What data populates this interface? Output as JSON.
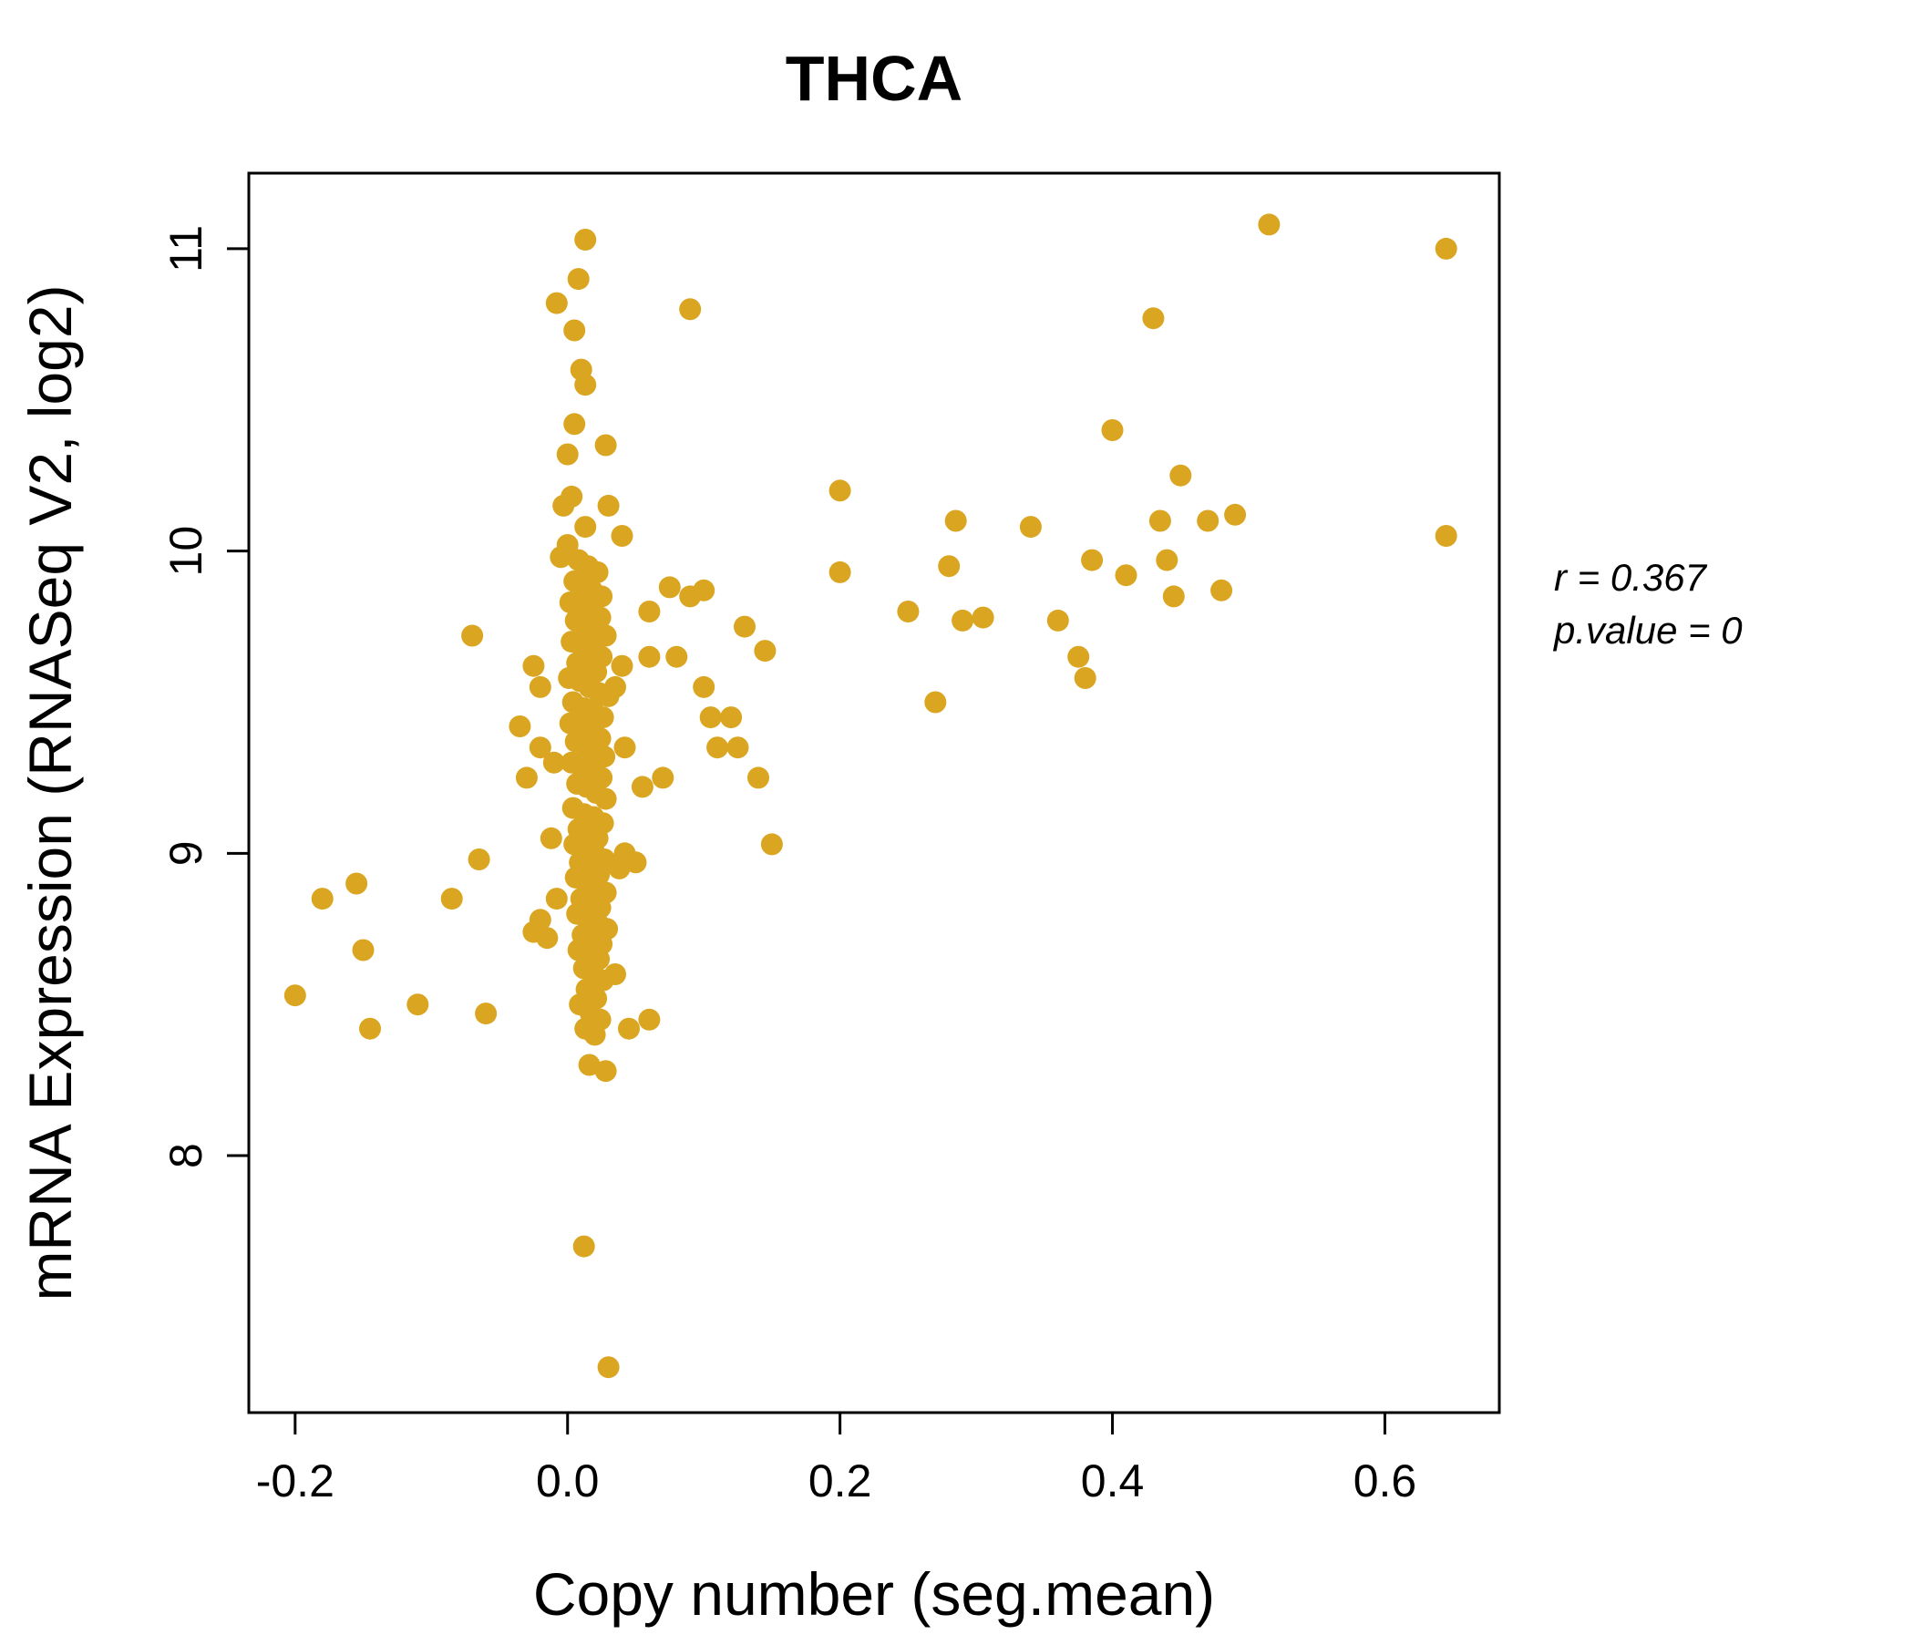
{
  "colors": {
    "accent": "#DAA520",
    "point": "#DAA520",
    "axis": "#000000",
    "background": "#FFFFFF"
  },
  "annotation": {
    "line1": "r = 0.367",
    "line2": "p.value = 0"
  },
  "chart_data": {
    "type": "scatter",
    "title": "THCA",
    "xlabel": "Copy number (seg.mean)",
    "ylabel": "mRNA Expression (RNASeq V2, log2)",
    "xlim": [
      -0.234,
      0.684
    ],
    "ylim": [
      7.15,
      11.25
    ],
    "x_ticks": [
      -0.2,
      0.0,
      0.2,
      0.4,
      0.6
    ],
    "x_tick_labels": [
      "-0.2",
      "0.0",
      "0.2",
      "0.4",
      "0.6"
    ],
    "y_ticks": [
      8,
      9,
      10,
      11
    ],
    "y_tick_labels": [
      "8",
      "9",
      "10",
      "11"
    ],
    "grid": false,
    "legend": "none",
    "annotations": [
      "r = 0.367",
      "p.value = 0"
    ],
    "points": [
      [
        0.013,
        11.03
      ],
      [
        0.008,
        10.9
      ],
      [
        -0.008,
        10.82
      ],
      [
        0.005,
        10.73
      ],
      [
        0.01,
        10.6
      ],
      [
        0.013,
        10.55
      ],
      [
        0.005,
        10.42
      ],
      [
        0.028,
        10.35
      ],
      [
        0.0,
        10.32
      ],
      [
        0.003,
        10.18
      ],
      [
        -0.003,
        10.15
      ],
      [
        0.03,
        10.15
      ],
      [
        0.013,
        10.08
      ],
      [
        0.04,
        10.05
      ],
      [
        0.0,
        10.02
      ],
      [
        -0.005,
        9.98
      ],
      [
        0.008,
        9.97
      ],
      [
        0.015,
        9.95
      ],
      [
        0.022,
        9.93
      ],
      [
        0.005,
        9.9
      ],
      [
        0.012,
        9.88
      ],
      [
        0.018,
        9.87
      ],
      [
        0.025,
        9.85
      ],
      [
        0.002,
        9.83
      ],
      [
        0.01,
        9.82
      ],
      [
        0.017,
        9.8
      ],
      [
        0.024,
        9.78
      ],
      [
        0.006,
        9.77
      ],
      [
        0.013,
        9.75
      ],
      [
        0.02,
        9.73
      ],
      [
        0.028,
        9.72
      ],
      [
        0.003,
        9.7
      ],
      [
        0.011,
        9.68
      ],
      [
        0.018,
        9.67
      ],
      [
        0.025,
        9.65
      ],
      [
        0.007,
        9.63
      ],
      [
        0.014,
        9.62
      ],
      [
        0.021,
        9.6
      ],
      [
        0.001,
        9.58
      ],
      [
        0.009,
        9.57
      ],
      [
        0.016,
        9.55
      ],
      [
        0.023,
        9.53
      ],
      [
        0.03,
        9.52
      ],
      [
        0.004,
        9.5
      ],
      [
        0.012,
        9.48
      ],
      [
        0.019,
        9.47
      ],
      [
        0.026,
        9.45
      ],
      [
        0.002,
        9.43
      ],
      [
        0.01,
        9.42
      ],
      [
        0.017,
        9.4
      ],
      [
        0.024,
        9.38
      ],
      [
        0.006,
        9.37
      ],
      [
        0.013,
        9.35
      ],
      [
        0.02,
        9.33
      ],
      [
        0.027,
        9.32
      ],
      [
        0.003,
        9.3
      ],
      [
        0.011,
        9.28
      ],
      [
        0.018,
        9.27
      ],
      [
        0.025,
        9.25
      ],
      [
        0.007,
        9.23
      ],
      [
        0.014,
        9.22
      ],
      [
        0.021,
        9.2
      ],
      [
        0.028,
        9.18
      ],
      [
        0.004,
        9.15
      ],
      [
        0.012,
        9.13
      ],
      [
        0.019,
        9.12
      ],
      [
        0.026,
        9.1
      ],
      [
        0.008,
        9.08
      ],
      [
        0.015,
        9.07
      ],
      [
        0.022,
        9.05
      ],
      [
        0.005,
        9.03
      ],
      [
        0.013,
        9.02
      ],
      [
        0.02,
        9.0
      ],
      [
        0.027,
        8.98
      ],
      [
        0.009,
        8.97
      ],
      [
        0.016,
        8.95
      ],
      [
        0.023,
        8.93
      ],
      [
        0.006,
        8.92
      ],
      [
        0.014,
        8.9
      ],
      [
        0.021,
        8.88
      ],
      [
        0.028,
        8.87
      ],
      [
        0.01,
        8.85
      ],
      [
        0.017,
        8.83
      ],
      [
        0.024,
        8.82
      ],
      [
        0.007,
        8.8
      ],
      [
        0.015,
        8.78
      ],
      [
        0.022,
        8.77
      ],
      [
        0.029,
        8.75
      ],
      [
        0.011,
        8.73
      ],
      [
        0.018,
        8.72
      ],
      [
        0.025,
        8.7
      ],
      [
        0.008,
        8.68
      ],
      [
        0.016,
        8.67
      ],
      [
        0.023,
        8.65
      ],
      [
        0.012,
        8.62
      ],
      [
        0.019,
        8.6
      ],
      [
        0.026,
        8.58
      ],
      [
        0.014,
        8.55
      ],
      [
        0.021,
        8.52
      ],
      [
        0.009,
        8.5
      ],
      [
        0.017,
        8.47
      ],
      [
        0.024,
        8.45
      ],
      [
        0.013,
        8.42
      ],
      [
        0.02,
        8.4
      ],
      [
        0.016,
        8.3
      ],
      [
        0.028,
        8.28
      ],
      [
        0.035,
        8.6
      ],
      [
        0.038,
        8.95
      ],
      [
        0.042,
        9.0
      ],
      [
        0.045,
        8.42
      ],
      [
        0.035,
        9.55
      ],
      [
        0.04,
        9.62
      ],
      [
        0.042,
        9.35
      ],
      [
        -0.01,
        9.3
      ],
      [
        -0.012,
        9.05
      ],
      [
        -0.008,
        8.85
      ],
      [
        -0.2,
        8.53
      ],
      [
        -0.18,
        8.85
      ],
      [
        -0.155,
        8.9
      ],
      [
        -0.15,
        8.68
      ],
      [
        -0.145,
        8.42
      ],
      [
        -0.11,
        8.5
      ],
      [
        -0.085,
        8.85
      ],
      [
        -0.07,
        9.72
      ],
      [
        -0.065,
        8.98
      ],
      [
        -0.06,
        8.47
      ],
      [
        -0.035,
        9.42
      ],
      [
        -0.03,
        9.25
      ],
      [
        -0.025,
        9.62
      ],
      [
        -0.02,
        9.55
      ],
      [
        -0.02,
        9.35
      ],
      [
        -0.02,
        8.78
      ],
      [
        -0.025,
        8.74
      ],
      [
        -0.015,
        8.72
      ],
      [
        0.012,
        7.7
      ],
      [
        0.03,
        7.3
      ],
      [
        0.05,
        8.97
      ],
      [
        0.055,
        9.22
      ],
      [
        0.06,
        9.8
      ],
      [
        0.06,
        9.65
      ],
      [
        0.06,
        8.45
      ],
      [
        0.07,
        9.25
      ],
      [
        0.075,
        9.88
      ],
      [
        0.08,
        9.65
      ],
      [
        0.09,
        10.8
      ],
      [
        0.09,
        9.85
      ],
      [
        0.1,
        9.87
      ],
      [
        0.1,
        9.55
      ],
      [
        0.105,
        9.45
      ],
      [
        0.11,
        9.35
      ],
      [
        0.12,
        9.45
      ],
      [
        0.125,
        9.35
      ],
      [
        0.13,
        9.75
      ],
      [
        0.14,
        9.25
      ],
      [
        0.145,
        9.67
      ],
      [
        0.15,
        9.03
      ],
      [
        0.2,
        10.2
      ],
      [
        0.2,
        9.93
      ],
      [
        0.25,
        9.8
      ],
      [
        0.27,
        9.5
      ],
      [
        0.28,
        9.95
      ],
      [
        0.285,
        10.1
      ],
      [
        0.29,
        9.77
      ],
      [
        0.305,
        9.78
      ],
      [
        0.34,
        10.08
      ],
      [
        0.36,
        9.77
      ],
      [
        0.375,
        9.65
      ],
      [
        0.38,
        9.58
      ],
      [
        0.385,
        9.97
      ],
      [
        0.4,
        10.4
      ],
      [
        0.41,
        9.92
      ],
      [
        0.43,
        10.77
      ],
      [
        0.435,
        10.1
      ],
      [
        0.44,
        9.97
      ],
      [
        0.445,
        9.85
      ],
      [
        0.45,
        10.25
      ],
      [
        0.47,
        10.1
      ],
      [
        0.48,
        9.87
      ],
      [
        0.49,
        10.12
      ],
      [
        0.515,
        11.08
      ],
      [
        0.645,
        11.0
      ],
      [
        0.645,
        10.05
      ]
    ]
  }
}
